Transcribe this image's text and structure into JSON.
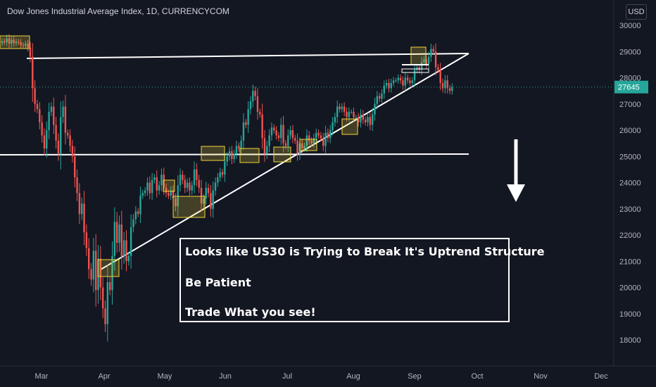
{
  "header": {
    "title": "Dow Jones Industrial Average Index, 1D, CURRENCYCOM",
    "currency_label": "USD"
  },
  "annotation": {
    "lines": [
      "Looks like US30 is Trying to Break It's Uptrend Structure",
      "Be Patient",
      "Trade What you see!"
    ]
  },
  "chart_data": {
    "type": "candlestick",
    "title": "Dow Jones Industrial Average Index, 1D, CURRENCYCOM",
    "ylim": [
      17500,
      30500
    ],
    "y_ticks": [
      18000,
      19000,
      20000,
      21000,
      22000,
      23000,
      24000,
      25000,
      26000,
      27000,
      28000,
      29000,
      30000
    ],
    "x_ticks": [
      "Mar",
      "Apr",
      "May",
      "Jun",
      "Jul",
      "Aug",
      "Sep",
      "Oct",
      "Nov",
      "Dec"
    ],
    "current_price": 27645,
    "current_price_label": "27645",
    "grid": false,
    "colors": {
      "up": "#26a69a",
      "down": "#ef5350",
      "price_label_bg": "#26a69a",
      "trendline": "#ffffff",
      "highlight": "#f0d43a"
    },
    "closes": [
      29400,
      29350,
      29500,
      29300,
      29450,
      29320,
      29380,
      29350,
      29250,
      29230,
      29300,
      29150,
      28800,
      27600,
      27000,
      26800,
      26300,
      25800,
      25300,
      26000,
      26700,
      26900,
      26200,
      25600,
      25100,
      26500,
      26900,
      25900,
      25800,
      25400,
      25000,
      24200,
      23600,
      22800,
      23200,
      22100,
      21500,
      20700,
      20300,
      21400,
      19900,
      21100,
      20000,
      19200,
      18600,
      20200,
      19900,
      21200,
      22500,
      21700,
      22400,
      21200,
      21800,
      21000,
      21200,
      22300,
      22600,
      22900,
      22800,
      23500,
      23600,
      23700,
      24000,
      23600,
      24100,
      24200,
      23700,
      23900,
      24300,
      23800,
      23600,
      23500,
      23700,
      23400,
      23100,
      23900,
      24300,
      24100,
      23800,
      24000,
      23700,
      23900,
      24500,
      24100,
      23800,
      23200,
      23400,
      23800,
      23600,
      23000,
      23700,
      24000,
      24200,
      24400,
      24300,
      24800,
      25000,
      25200,
      24900,
      25100,
      25400,
      25300,
      25600,
      26300,
      26200,
      26800,
      27100,
      27500,
      27300,
      26700,
      26600,
      25700,
      25100,
      25400,
      25800,
      26100,
      26000,
      25800,
      25700,
      26200,
      25500,
      25400,
      25800,
      26000,
      25700,
      25600,
      25100,
      25500,
      25300,
      25400,
      25800,
      25600,
      25500,
      25700,
      25900,
      25800,
      25700,
      25400,
      25900,
      25700,
      26000,
      26300,
      26500,
      26900,
      26800,
      26900,
      26700,
      26500,
      26700,
      26700,
      26500,
      26500,
      26300,
      26600,
      26400,
      26300,
      26500,
      26200,
      26600,
      27000,
      27300,
      27200,
      27400,
      27700,
      27800,
      27600,
      27800,
      27900,
      27900,
      28000,
      27900,
      27700,
      28000,
      27900,
      27800,
      27900,
      28300,
      28400,
      28300,
      28600,
      28700,
      28500,
      28800,
      29100,
      29000,
      28400,
      28300,
      27800,
      27600,
      27900,
      27600,
      27500,
      27645
    ]
  }
}
